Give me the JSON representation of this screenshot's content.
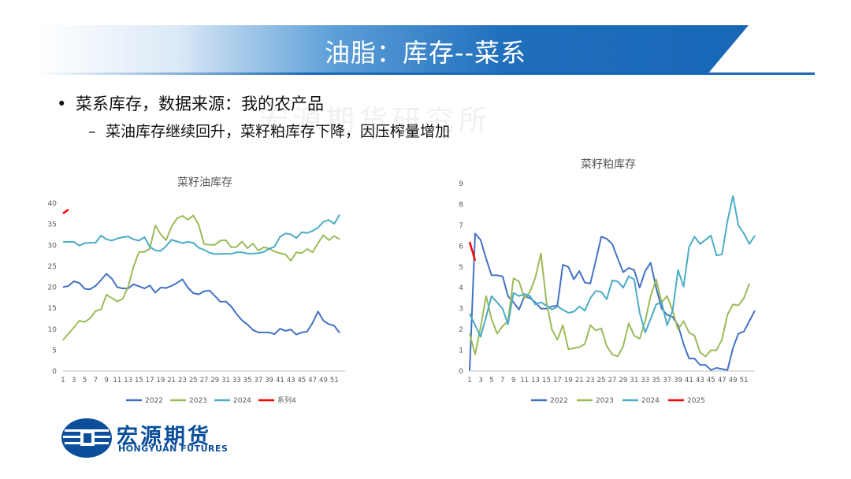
{
  "slide": {
    "title": "油脂：库存--菜系",
    "bullet1": "菜系库存，数据来源：我的农产品",
    "bullet2": "菜油库存继续回升，菜籽粕库存下降，因压榨量增加",
    "watermark": "宏源期货研究所",
    "logo_cn": "宏源期货",
    "logo_en": "HONGYUAN FUTURES",
    "bullet_symbol": "•",
    "dash_symbol": "–"
  },
  "colors": {
    "s2022": "#4472C4",
    "s2023": "#9BBB59",
    "s2024": "#4BACC6",
    "s4": "#FF0000",
    "brand": "#0b4f9c"
  },
  "chart_data": [
    {
      "type": "line",
      "title": "菜籽油库存",
      "ylim": [
        0,
        40
      ],
      "yticks": [
        0,
        5,
        10,
        15,
        20,
        25,
        30,
        35,
        40
      ],
      "xticks": [
        "1",
        "3",
        "5",
        "7",
        "9",
        "11",
        "13",
        "15",
        "17",
        "19",
        "21",
        "23",
        "25",
        "27",
        "29",
        "31",
        "33",
        "35",
        "37",
        "39",
        "41",
        "43",
        "45",
        "47",
        "49",
        "51"
      ],
      "series": [
        {
          "name": "2022",
          "color": "#4472C4",
          "values": [
            20,
            20.3,
            21.4,
            21,
            19.6,
            19.5,
            20.3,
            21.7,
            23.2,
            22,
            20,
            19.7,
            19.7,
            20.7,
            20.2,
            19.7,
            20.4,
            18.7,
            19.9,
            19.8,
            20.3,
            21,
            21.9,
            19.9,
            18.6,
            18.3,
            19,
            19.2,
            17.9,
            16.5,
            16.6,
            15.4,
            13.6,
            12.1,
            11.1,
            9.8,
            9.2,
            9.2,
            9.2,
            8.8,
            10.1,
            9.6,
            9.9,
            8.7,
            9.2,
            9.4,
            11.5,
            14.2,
            12,
            11.2,
            10.8,
            9.1
          ]
        },
        {
          "name": "2023",
          "color": "#9BBB59",
          "values": [
            7.4,
            8.9,
            10.4,
            12,
            11.7,
            12.6,
            14.3,
            14.7,
            18.2,
            17.4,
            16.6,
            17.2,
            20.1,
            24.9,
            28.4,
            28.4,
            29.2,
            34.7,
            32.6,
            31.2,
            34.4,
            36.4,
            37,
            36.1,
            37.1,
            34.9,
            30.3,
            30.1,
            30.1,
            31.1,
            31.2,
            29.5,
            29.6,
            30.9,
            29.3,
            30.4,
            28.7,
            29.5,
            29.2,
            28.5,
            28.1,
            27.8,
            26.3,
            28.3,
            28.1,
            29.1,
            28.3,
            30.5,
            32.4,
            31.2,
            32.2,
            31.4
          ]
        },
        {
          "name": "2024",
          "color": "#4BACC6",
          "values": [
            30.8,
            30.8,
            30.8,
            29.9,
            30.5,
            30.6,
            30.6,
            32.3,
            31.4,
            31.1,
            31.6,
            31.9,
            32.1,
            31.4,
            31.1,
            31.9,
            29.6,
            28.8,
            28.6,
            29.8,
            31.3,
            30.9,
            30.5,
            30.8,
            30.6,
            29.4,
            28.9,
            28.2,
            27.9,
            27.9,
            28,
            27.9,
            28.3,
            28.3,
            28,
            28,
            28.1,
            28.4,
            29.1,
            29.7,
            32,
            32.8,
            32.6,
            31.7,
            33.1,
            32.9,
            33.4,
            34.2,
            35.6,
            36,
            35.1,
            37.3
          ]
        },
        {
          "name": "系列4",
          "color": "#FF0000",
          "values": [
            37.6,
            38.5
          ]
        }
      ]
    },
    {
      "type": "line",
      "title": "菜籽粕库存",
      "ylim": [
        0,
        9
      ],
      "yticks": [
        0,
        1,
        2,
        3,
        4,
        5,
        6,
        7,
        8,
        9
      ],
      "xticks": [
        "1",
        "3",
        "5",
        "7",
        "9",
        "11",
        "13",
        "15",
        "17",
        "19",
        "21",
        "23",
        "25",
        "27",
        "29",
        "31",
        "33",
        "35",
        "37",
        "39",
        "41",
        "43",
        "45",
        "47",
        "49",
        "51"
      ],
      "series": [
        {
          "name": "2022",
          "color": "#4472C4",
          "values": [
            0.01,
            6.6,
            6.3,
            5.4,
            4.6,
            4.6,
            4.55,
            3.6,
            3.3,
            2.95,
            3.6,
            3.5,
            3.3,
            3,
            3,
            3.1,
            3.15,
            5.1,
            5,
            4.4,
            4.8,
            4.25,
            4.2,
            5.3,
            6.45,
            6.35,
            6.1,
            5.4,
            4.75,
            4.95,
            4.85,
            4,
            4.8,
            5.2,
            4,
            3,
            2.7,
            2.6,
            2.2,
            1.3,
            0.6,
            0.6,
            0.3,
            0.3,
            0.05,
            0.15,
            0.1,
            0.05,
            1.1,
            1.8,
            1.9,
            2.4,
            2.9
          ]
        },
        {
          "name": "2023",
          "color": "#9BBB59",
          "values": [
            1.8,
            0.8,
            2.1,
            3.6,
            2.5,
            1.8,
            2.15,
            2.4,
            4.45,
            4.3,
            3.5,
            3.8,
            4.5,
            5.65,
            3.3,
            2,
            1.5,
            2.2,
            1.05,
            1.1,
            1.15,
            1.3,
            2.2,
            1.95,
            2.05,
            1.2,
            0.8,
            0.7,
            1.2,
            2.3,
            1.7,
            1.55,
            2.4,
            3.6,
            4.4,
            3.3,
            3.6,
            2.9,
            2,
            2.4,
            1.85,
            1.7,
            0.9,
            0.7,
            1,
            1,
            1.5,
            2.7,
            3.2,
            3.15,
            3.5,
            4.2
          ]
        },
        {
          "name": "2024",
          "color": "#4BACC6",
          "values": [
            2.75,
            2.2,
            1.65,
            2.6,
            3.6,
            3.3,
            3,
            2.25,
            3.75,
            3.6,
            3.7,
            3.6,
            3.2,
            3.3,
            3.15,
            2.95,
            3.1,
            2.95,
            2.8,
            2.85,
            3.1,
            2.9,
            3.5,
            3.85,
            3.8,
            3.45,
            4.35,
            4.3,
            4,
            4.55,
            4.4,
            2.8,
            1.85,
            2.5,
            3.2,
            3.3,
            2.2,
            2.9,
            4.85,
            4.05,
            5.95,
            6.45,
            6.1,
            6.3,
            6.5,
            5.55,
            5.6,
            7.2,
            8.4,
            7,
            6.6,
            6.1,
            6.5
          ]
        },
        {
          "name": "2025",
          "color": "#FF0000",
          "values": [
            6.2,
            5.3
          ]
        }
      ]
    }
  ]
}
